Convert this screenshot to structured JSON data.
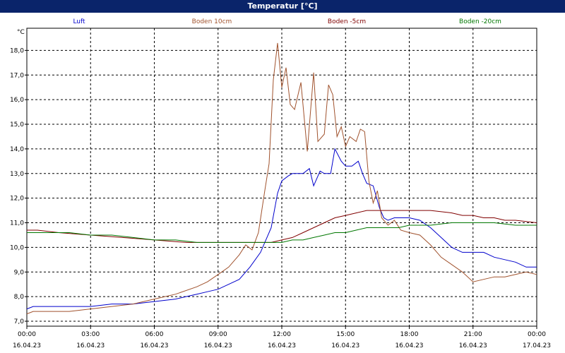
{
  "window": {
    "title": "Temperatur [°C]"
  },
  "chart_data": {
    "type": "line",
    "title": "Temperatur [°C]",
    "ylabel": "°C",
    "xlabel": "",
    "grid": true,
    "legend_placement": "top",
    "ylim": [
      6.8,
      18.9
    ],
    "yticks": [
      7.0,
      8.0,
      9.0,
      10.0,
      11.0,
      12.0,
      13.0,
      14.0,
      15.0,
      16.0,
      17.0,
      18.0
    ],
    "ytick_labels": [
      "7,0",
      "8,0",
      "9,0",
      "10,0",
      "11,0",
      "12,0",
      "13,0",
      "14,0",
      "15,0",
      "16,0",
      "17,0",
      "18,0"
    ],
    "xlim": [
      0,
      24
    ],
    "xticks": [
      0,
      3,
      6,
      9,
      12,
      15,
      18,
      21,
      24
    ],
    "xtick_labels": [
      {
        "time": "00:00",
        "date": "16.04.23"
      },
      {
        "time": "03:00",
        "date": "16.04.23"
      },
      {
        "time": "06:00",
        "date": "16.04.23"
      },
      {
        "time": "09:00",
        "date": "16.04.23"
      },
      {
        "time": "12:00",
        "date": "16.04.23"
      },
      {
        "time": "15:00",
        "date": "16.04.23"
      },
      {
        "time": "18:00",
        "date": "16.04.23"
      },
      {
        "time": "21:00",
        "date": "16.04.23"
      },
      {
        "time": "00:00",
        "date": "17.04.23"
      }
    ],
    "series": [
      {
        "name": "Luft",
        "color": "#0000cc",
        "x": [
          0,
          0.3,
          1,
          2,
          3,
          4,
          5,
          6,
          7,
          7.5,
          8,
          8.5,
          9,
          9.5,
          10,
          10.5,
          11,
          11.5,
          11.8,
          12,
          12.3,
          12.5,
          12.7,
          13,
          13.3,
          13.5,
          13.8,
          14,
          14.3,
          14.5,
          14.8,
          15,
          15.3,
          15.6,
          15.8,
          16,
          16.3,
          16.6,
          16.8,
          17,
          17.3,
          17.6,
          18,
          18.5,
          19,
          19.5,
          20,
          20.5,
          21,
          21.5,
          22,
          22.5,
          23,
          23.5,
          24
        ],
        "y": [
          7.5,
          7.6,
          7.6,
          7.6,
          7.6,
          7.7,
          7.7,
          7.8,
          7.9,
          8.0,
          8.1,
          8.2,
          8.3,
          8.5,
          8.7,
          9.2,
          9.8,
          10.8,
          12.2,
          12.7,
          12.9,
          13.0,
          13.0,
          13.0,
          13.2,
          12.5,
          13.1,
          13.0,
          13.0,
          14.0,
          13.5,
          13.3,
          13.3,
          13.5,
          13.0,
          12.6,
          12.5,
          11.6,
          11.2,
          11.1,
          11.2,
          11.2,
          11.2,
          11.1,
          10.8,
          10.4,
          10.0,
          9.8,
          9.8,
          9.8,
          9.6,
          9.5,
          9.4,
          9.2,
          9.2
        ]
      },
      {
        "name": "Boden 10cm",
        "color": "#a0522d",
        "x": [
          0,
          0.3,
          1,
          2,
          3,
          4,
          5,
          6,
          7,
          8,
          8.5,
          9,
          9.5,
          10,
          10.3,
          10.6,
          10.9,
          11.2,
          11.4,
          11.6,
          11.8,
          12.0,
          12.2,
          12.4,
          12.6,
          12.9,
          13.2,
          13.5,
          13.7,
          14.0,
          14.2,
          14.4,
          14.6,
          14.8,
          15.0,
          15.2,
          15.5,
          15.7,
          15.9,
          16.1,
          16.3,
          16.5,
          16.7,
          17.0,
          17.3,
          17.6,
          18,
          18.5,
          19,
          19.5,
          20,
          20.5,
          21,
          21.5,
          22,
          22.5,
          23,
          23.5,
          24
        ],
        "y": [
          7.3,
          7.4,
          7.4,
          7.4,
          7.5,
          7.6,
          7.7,
          7.9,
          8.1,
          8.4,
          8.6,
          8.9,
          9.2,
          9.7,
          10.1,
          9.9,
          10.6,
          12.3,
          13.4,
          16.8,
          18.3,
          16.5,
          17.3,
          15.8,
          15.6,
          16.7,
          13.9,
          17.1,
          14.3,
          14.6,
          16.6,
          16.2,
          14.5,
          14.9,
          14.1,
          14.5,
          14.3,
          14.8,
          14.7,
          12.7,
          11.8,
          12.3,
          11.2,
          10.9,
          11.1,
          10.7,
          10.6,
          10.5,
          10.1,
          9.6,
          9.3,
          9.0,
          8.6,
          8.7,
          8.8,
          8.8,
          8.9,
          9.0,
          8.9
        ]
      },
      {
        "name": "Boden -5cm",
        "color": "#800000",
        "x": [
          0,
          0.5,
          1.5,
          3,
          4.5,
          6,
          7.5,
          9,
          10,
          11,
          11.5,
          12,
          12.5,
          13,
          13.5,
          14,
          14.5,
          15,
          15.5,
          16,
          16.5,
          17,
          17.5,
          18,
          19,
          20,
          20.5,
          21,
          21.5,
          22,
          22.5,
          23,
          24
        ],
        "y": [
          10.7,
          10.7,
          10.6,
          10.5,
          10.4,
          10.3,
          10.2,
          10.2,
          10.2,
          10.2,
          10.2,
          10.3,
          10.4,
          10.6,
          10.8,
          11.0,
          11.2,
          11.3,
          11.4,
          11.5,
          11.5,
          11.5,
          11.5,
          11.5,
          11.5,
          11.4,
          11.3,
          11.3,
          11.2,
          11.2,
          11.1,
          11.1,
          11.0
        ]
      },
      {
        "name": "Boden -20cm",
        "color": "#007700",
        "x": [
          0,
          1,
          2,
          3,
          4,
          5,
          6,
          7,
          8,
          9,
          10,
          11,
          12,
          12.5,
          13,
          13.5,
          14,
          14.5,
          15,
          15.5,
          16,
          16.5,
          17,
          17.5,
          18,
          19,
          20,
          21,
          22,
          23,
          24
        ],
        "y": [
          10.6,
          10.6,
          10.6,
          10.5,
          10.5,
          10.4,
          10.3,
          10.3,
          10.2,
          10.2,
          10.2,
          10.2,
          10.2,
          10.3,
          10.3,
          10.4,
          10.5,
          10.6,
          10.6,
          10.7,
          10.8,
          10.8,
          10.8,
          10.8,
          10.9,
          10.9,
          11.0,
          11.0,
          11.0,
          10.9,
          10.9
        ]
      }
    ]
  }
}
